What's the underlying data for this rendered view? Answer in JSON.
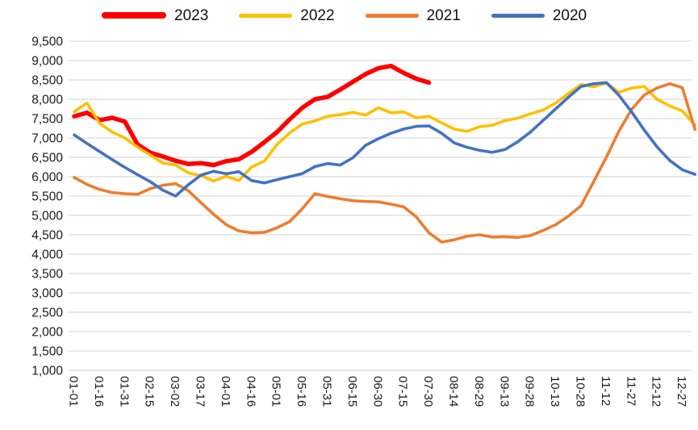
{
  "chart_data": {
    "type": "line",
    "title": "",
    "xlabel": "",
    "ylabel": "",
    "grid": true,
    "legend_position": "top",
    "points_per_tick_interval": 2,
    "x_tick_labels": [
      "01-01",
      "01-16",
      "01-31",
      "02-15",
      "03-02",
      "03-17",
      "04-01",
      "04-16",
      "05-01",
      "05-16",
      "05-31",
      "06-15",
      "06-30",
      "07-15",
      "07-30",
      "08-14",
      "08-29",
      "09-13",
      "09-28",
      "10-13",
      "10-28",
      "11-12",
      "11-27",
      "12-12",
      "12-27"
    ],
    "y_axis": {
      "min": 1000,
      "max": 9500,
      "step": 500,
      "tick_labels": [
        "9,500",
        "9,000",
        "8,500",
        "8,000",
        "7,500",
        "7,000",
        "6,500",
        "6,000",
        "5,500",
        "5,000",
        "4,500",
        "4,000",
        "3,500",
        "3,000",
        "2,500",
        "2,000",
        "1,500",
        "1,000"
      ]
    },
    "series": [
      {
        "name": "2023",
        "color": "#FF0000",
        "stroke_width": 5.5,
        "values": [
          7560,
          7650,
          7460,
          7520,
          7420,
          6830,
          6620,
          6520,
          6410,
          6330,
          6350,
          6300,
          6400,
          6450,
          6640,
          6890,
          7150,
          7480,
          7780,
          8000,
          8060,
          8250,
          8450,
          8650,
          8800,
          8860,
          8680,
          8530,
          8430,
          null,
          null,
          null,
          null,
          null,
          null,
          null,
          null,
          null,
          null,
          null,
          null,
          null,
          null,
          null,
          null,
          null,
          null,
          null,
          null,
          null
        ]
      },
      {
        "name": "2022",
        "color": "#FFC000",
        "stroke_width": 3.6,
        "values": [
          7680,
          7900,
          7380,
          7150,
          7000,
          6760,
          6560,
          6350,
          6300,
          6100,
          6030,
          5890,
          6010,
          5900,
          6250,
          6400,
          6830,
          7130,
          7360,
          7440,
          7560,
          7600,
          7660,
          7590,
          7780,
          7650,
          7670,
          7520,
          7560,
          7390,
          7230,
          7170,
          7290,
          7330,
          7450,
          7510,
          7620,
          7720,
          7900,
          8150,
          8380,
          8320,
          8420,
          8180,
          8290,
          8330,
          8000,
          7830,
          7700,
          7330
        ]
      },
      {
        "name": "2021",
        "color": "#ED7D31",
        "stroke_width": 3.6,
        "values": [
          5980,
          5800,
          5670,
          5590,
          5560,
          5545,
          5690,
          5780,
          5820,
          5640,
          5330,
          5030,
          4760,
          4600,
          4550,
          4560,
          4680,
          4840,
          5170,
          5560,
          5490,
          5430,
          5380,
          5360,
          5350,
          5290,
          5220,
          4960,
          4550,
          4310,
          4370,
          4460,
          4500,
          4440,
          4450,
          4430,
          4480,
          4610,
          4760,
          4980,
          5250,
          5870,
          6500,
          7180,
          7740,
          8110,
          8290,
          8400,
          8300,
          7220
        ]
      },
      {
        "name": "2020",
        "color": "#4472C4",
        "stroke_width": 3.6,
        "values": [
          7080,
          6860,
          6650,
          6440,
          6240,
          6050,
          5870,
          5650,
          5500,
          5790,
          6040,
          6140,
          6075,
          6130,
          5900,
          5840,
          5920,
          6000,
          6080,
          6260,
          6340,
          6300,
          6490,
          6810,
          6980,
          7120,
          7230,
          7300,
          7310,
          7120,
          6870,
          6760,
          6680,
          6630,
          6700,
          6900,
          7150,
          7450,
          7750,
          8050,
          8330,
          8400,
          8430,
          8100,
          7670,
          7200,
          6770,
          6420,
          6180,
          6060
        ]
      }
    ]
  }
}
